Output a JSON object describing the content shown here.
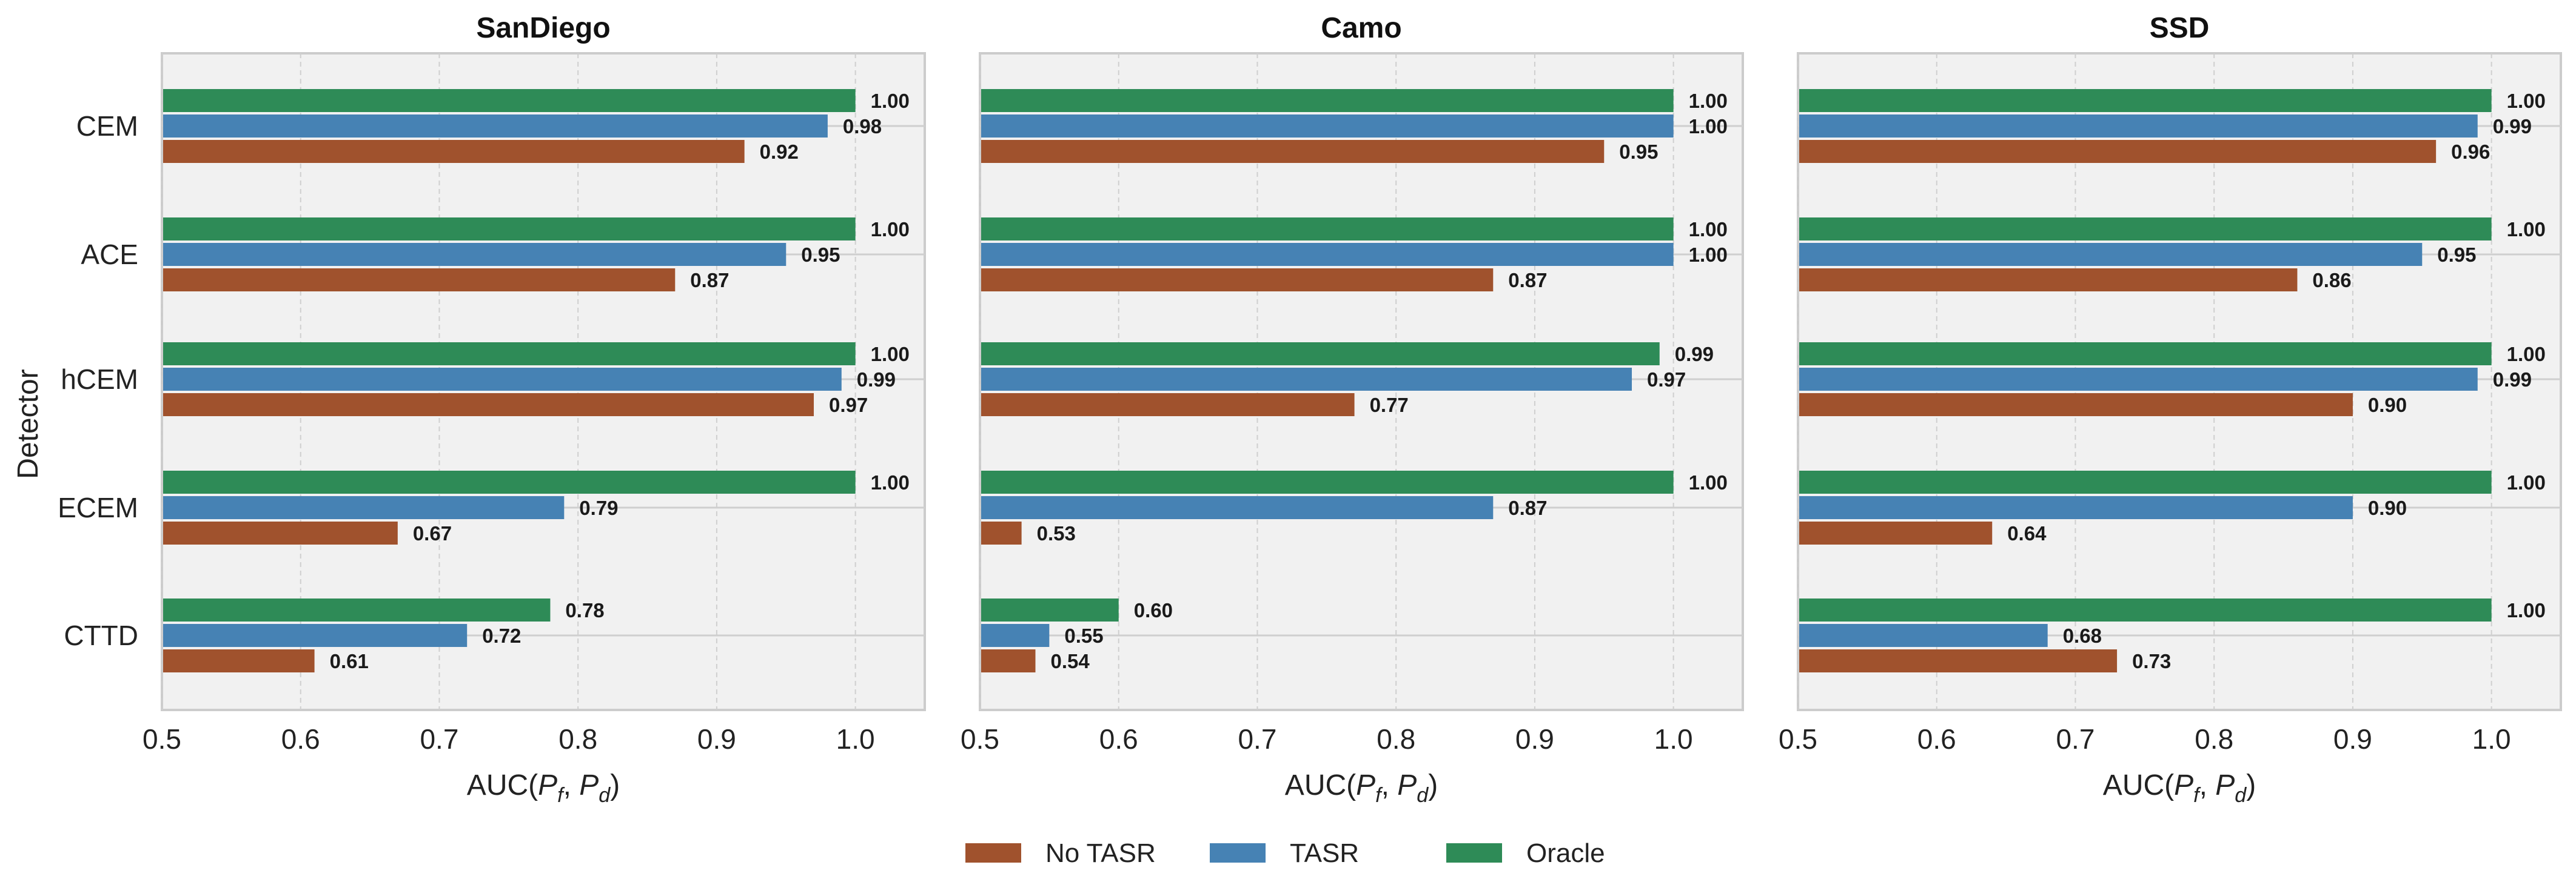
{
  "chart_data": {
    "type": "bar",
    "orientation": "horizontal",
    "ylabel": "Detector",
    "categories": [
      "CEM",
      "ACE",
      "hCEM",
      "ECEM",
      "CTTD"
    ],
    "xlim": [
      0.5,
      1.05
    ],
    "xticks": [
      "0.5",
      "0.6",
      "0.7",
      "0.8",
      "0.9",
      "1.0"
    ],
    "grid": true,
    "legend": {
      "placement": "bottom-center",
      "entries": [
        {
          "key": "no_tasr",
          "label": "No TASR",
          "color": "#A0522D"
        },
        {
          "key": "tasr",
          "label": "TASR",
          "color": "#4682B4"
        },
        {
          "key": "oracle",
          "label": "Oracle",
          "color": "#2E8B57"
        }
      ]
    },
    "panels": [
      {
        "title": "SanDiego",
        "xlabel_main": "AUC(",
        "xlabel_a": "P",
        "xlabel_a_sub": "f",
        "xlabel_sep": ", ",
        "xlabel_b": "P",
        "xlabel_b_sub": "d",
        "xlabel_end": ")",
        "series": [
          {
            "name": "No TASR",
            "values": [
              0.92,
              0.87,
              0.97,
              0.67,
              0.61
            ]
          },
          {
            "name": "TASR",
            "values": [
              0.98,
              0.95,
              0.99,
              0.79,
              0.72
            ]
          },
          {
            "name": "Oracle",
            "values": [
              1.0,
              1.0,
              1.0,
              1.0,
              0.78
            ]
          }
        ]
      },
      {
        "title": "Camo",
        "xlabel_main": "AUC(",
        "xlabel_a": "P",
        "xlabel_a_sub": "f",
        "xlabel_sep": ", ",
        "xlabel_b": "P",
        "xlabel_b_sub": "d",
        "xlabel_end": ")",
        "series": [
          {
            "name": "No TASR",
            "values": [
              0.95,
              0.87,
              0.77,
              0.53,
              0.54
            ]
          },
          {
            "name": "TASR",
            "values": [
              1.0,
              1.0,
              0.97,
              0.87,
              0.55
            ]
          },
          {
            "name": "Oracle",
            "values": [
              1.0,
              1.0,
              0.99,
              1.0,
              0.6
            ]
          }
        ]
      },
      {
        "title": "SSD",
        "xlabel_main": "AUC(",
        "xlabel_a": "P",
        "xlabel_a_sub": "f",
        "xlabel_sep": ", ",
        "xlabel_b": "P",
        "xlabel_b_sub": "d",
        "xlabel_end": ")",
        "series": [
          {
            "name": "No TASR",
            "values": [
              0.96,
              0.86,
              0.9,
              0.64,
              0.73
            ]
          },
          {
            "name": "TASR",
            "values": [
              0.99,
              0.95,
              0.99,
              0.9,
              0.68
            ]
          },
          {
            "name": "Oracle",
            "values": [
              1.0,
              1.0,
              1.0,
              1.0,
              1.0
            ]
          }
        ]
      }
    ]
  }
}
